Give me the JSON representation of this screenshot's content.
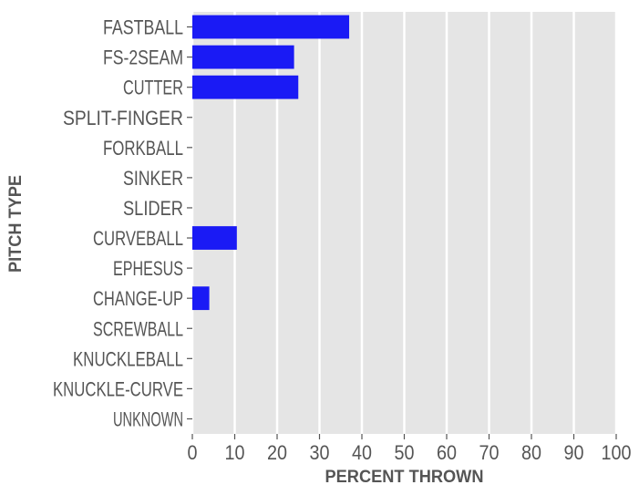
{
  "chart_data": {
    "type": "bar",
    "orientation": "horizontal",
    "categories": [
      "FASTBALL",
      "FS-2SEAM",
      "CUTTER",
      "SPLIT-FINGER",
      "FORKBALL",
      "SINKER",
      "SLIDER",
      "CURVEBALL",
      "EPHESUS",
      "CHANGE-UP",
      "SCREWBALL",
      "KNUCKLEBALL",
      "KNUCKLE-CURVE",
      "UNKNOWN"
    ],
    "values": [
      37,
      24,
      25,
      0,
      0,
      0,
      0,
      10.5,
      0,
      4,
      0,
      0,
      0,
      0
    ],
    "xlabel": "PERCENT THROWN",
    "ylabel": "PITCH TYPE",
    "xlim": [
      0,
      100
    ],
    "xticks": [
      "0",
      "10",
      "20",
      "30",
      "40",
      "50",
      "60",
      "70",
      "80",
      "90",
      "100"
    ],
    "grid": true,
    "bar_color": "#1a1af5",
    "background_color": "#e5e5e5"
  }
}
